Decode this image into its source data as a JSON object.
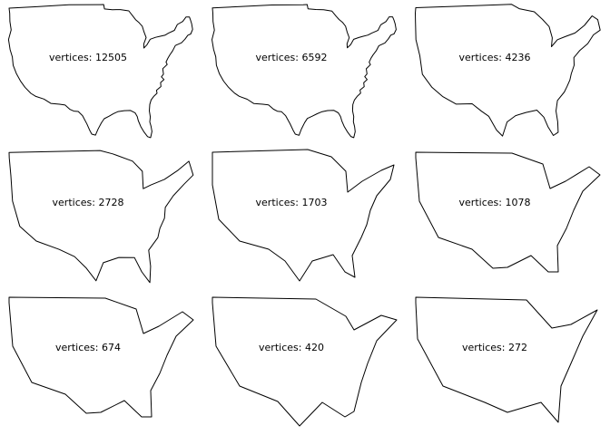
{
  "figure": {
    "panels": [
      {
        "vertices_label": "vertices: 12505",
        "vertices": 12505,
        "simplification_level": 0
      },
      {
        "vertices_label": "vertices: 6592",
        "vertices": 6592,
        "simplification_level": 1
      },
      {
        "vertices_label": "vertices: 4236",
        "vertices": 4236,
        "simplification_level": 2
      },
      {
        "vertices_label": "vertices: 2728",
        "vertices": 2728,
        "simplification_level": 3
      },
      {
        "vertices_label": "vertices: 1703",
        "vertices": 1703,
        "simplification_level": 4
      },
      {
        "vertices_label": "vertices: 1078",
        "vertices": 1078,
        "simplification_level": 5
      },
      {
        "vertices_label": "vertices: 674",
        "vertices": 674,
        "simplification_level": 6
      },
      {
        "vertices_label": "vertices: 420",
        "vertices": 420,
        "simplification_level": 7
      },
      {
        "vertices_label": "vertices: 272",
        "vertices": 272,
        "simplification_level": 8
      }
    ],
    "stroke_color": "#000000",
    "background_color": "#ffffff",
    "outline_subject": "contiguous United States"
  }
}
